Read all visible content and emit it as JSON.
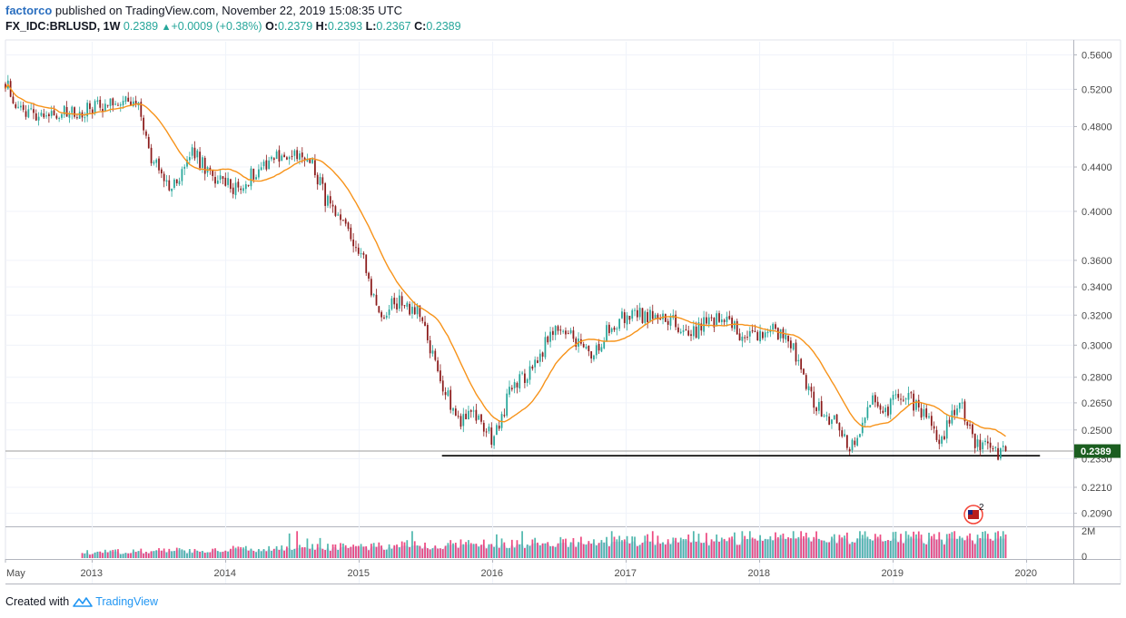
{
  "header": {
    "author": "factorco",
    "published_text": " published on TradingView.com, November 22, 2019 15:08:35 UTC"
  },
  "legend": {
    "symbol": "FX_IDC:BRLUSD, 1W",
    "last": "0.2389",
    "change": "+0.0009 (+0.38%)",
    "o_label": "O:",
    "o_value": "0.2379",
    "h_label": "H:",
    "h_value": "0.2393",
    "l_label": "L:",
    "l_value": "0.2367",
    "c_label": "C:",
    "c_value": "0.2389"
  },
  "footer": {
    "created_with": "Created with",
    "brand": "TradingView"
  },
  "colors": {
    "up": "#26a69a",
    "down": "#8b1a1a",
    "ma": "#f7931a",
    "volume_up": "#26a69a",
    "volume_down": "#e91e63",
    "volume_ma": "#9fa8da",
    "support_line": "#000000",
    "last_price_label": "#1b5e20"
  },
  "flag_badge": {
    "count": "2"
  },
  "chart_data": {
    "type": "candlestick",
    "interval": "1W",
    "y_scale": "log",
    "ylim": [
      0.204,
      0.576
    ],
    "y_ticks": [
      0.56,
      0.52,
      0.48,
      0.44,
      0.4,
      0.36,
      0.34,
      0.32,
      0.3,
      0.28,
      0.265,
      0.25,
      0.235,
      0.221,
      0.209
    ],
    "y_tick_labels": [
      "0.5600",
      "0.5200",
      "0.4800",
      "0.4400",
      "0.4000",
      "0.3600",
      "0.3400",
      "0.3200",
      "0.3000",
      "0.2800",
      "0.2650",
      "0.2500",
      "0.2350",
      "0.2210",
      "0.2090"
    ],
    "x_range": [
      2012.35,
      2020.35
    ],
    "x_ticks": [
      2012.35,
      2013,
      2014,
      2015,
      2016,
      2017,
      2018,
      2019,
      2020
    ],
    "x_tick_labels": [
      "May",
      "2013",
      "2014",
      "2015",
      "2016",
      "2017",
      "2018",
      "2019",
      "2020"
    ],
    "last_price": 0.2389,
    "last_price_label": "0.2389",
    "support_level": 0.2365,
    "ma_period_weeks": 20,
    "price_path": {
      "t": [
        2012.35,
        2012.45,
        2012.6,
        2012.85,
        2013.0,
        2013.2,
        2013.35,
        2013.45,
        2013.6,
        2013.75,
        2013.9,
        2014.1,
        2014.25,
        2014.35,
        2014.5,
        2014.65,
        2014.75,
        2014.85,
        2015.0,
        2015.15,
        2015.3,
        2015.45,
        2015.6,
        2015.75,
        2015.85,
        2016.0,
        2016.15,
        2016.3,
        2016.45,
        2016.6,
        2016.75,
        2016.85,
        2017.0,
        2017.1,
        2017.35,
        2017.45,
        2017.6,
        2017.75,
        2017.85,
        2018.0,
        2018.1,
        2018.25,
        2018.4,
        2018.55,
        2018.7,
        2018.85,
        2018.95,
        2019.0,
        2019.1,
        2019.25,
        2019.35,
        2019.5,
        2019.6,
        2019.75,
        2019.85
      ],
      "close": [
        0.53,
        0.495,
        0.495,
        0.493,
        0.5,
        0.51,
        0.498,
        0.445,
        0.42,
        0.455,
        0.43,
        0.42,
        0.44,
        0.45,
        0.45,
        0.445,
        0.41,
        0.39,
        0.37,
        0.32,
        0.33,
        0.32,
        0.28,
        0.255,
        0.26,
        0.245,
        0.275,
        0.285,
        0.31,
        0.305,
        0.29,
        0.31,
        0.32,
        0.32,
        0.315,
        0.305,
        0.315,
        0.32,
        0.305,
        0.305,
        0.31,
        0.3,
        0.265,
        0.255,
        0.24,
        0.27,
        0.26,
        0.265,
        0.27,
        0.255,
        0.245,
        0.265,
        0.245,
        0.238,
        0.2389
      ]
    },
    "volume": {
      "axis_labels": [
        "2M",
        "0"
      ],
      "max": 2000000
    },
    "candle_seed": 1337
  }
}
